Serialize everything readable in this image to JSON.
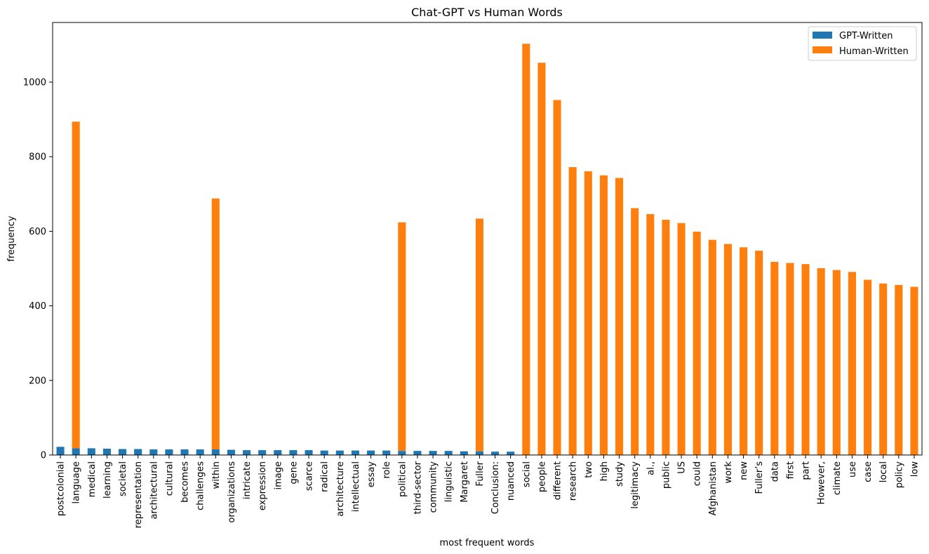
{
  "chart_data": {
    "type": "bar",
    "stacked": true,
    "title": "Chat-GPT vs Human Words",
    "xlabel": "most frequent words",
    "ylabel": "frequency",
    "ylim": [
      0,
      1160
    ],
    "yticks": [
      0,
      200,
      400,
      600,
      800,
      1000
    ],
    "grid": false,
    "legend_position": "top-right",
    "categories": [
      "postcolonial",
      "language",
      "medical",
      "learning",
      "societal",
      "representation",
      "architectural",
      "cultural",
      "becomes",
      "challenges",
      "within",
      "organizations",
      "intricate",
      "expression",
      "image",
      "gene",
      "scarce",
      "radical",
      "architecture",
      "intellectual",
      "essay",
      "role",
      "political",
      "third-sector",
      "community",
      "linguistic",
      "Margaret",
      "Fuller",
      "Conclusion:",
      "nuanced",
      "social",
      "people",
      "different",
      "research",
      "two",
      "high",
      "study",
      "legitimacy",
      "al.,",
      "public",
      "US",
      "could",
      "Afghanistan",
      "work",
      "new",
      "Fuller’s",
      "data",
      "first",
      "part",
      "However,",
      "climate",
      "use",
      "case",
      "local",
      "policy",
      "low"
    ],
    "series": [
      {
        "name": "GPT-Written",
        "color": "#1f77b4",
        "values": [
          22,
          18,
          18,
          17,
          16,
          16,
          15,
          15,
          15,
          15,
          15,
          14,
          13,
          13,
          13,
          13,
          13,
          12,
          12,
          12,
          12,
          12,
          11,
          11,
          11,
          11,
          10,
          10,
          9,
          9,
          0,
          0,
          0,
          0,
          0,
          0,
          0,
          0,
          0,
          0,
          0,
          0,
          0,
          0,
          0,
          0,
          0,
          0,
          0,
          0,
          0,
          0,
          0,
          0,
          0,
          0
        ]
      },
      {
        "name": "Human-Written",
        "color": "#ff7f0e",
        "values": [
          0,
          876,
          0,
          0,
          0,
          0,
          0,
          0,
          0,
          0,
          673,
          0,
          0,
          0,
          0,
          0,
          0,
          0,
          0,
          0,
          0,
          0,
          613,
          0,
          0,
          0,
          0,
          624,
          0,
          0,
          1103,
          1052,
          952,
          772,
          761,
          750,
          743,
          662,
          646,
          631,
          622,
          599,
          577,
          566,
          557,
          548,
          518,
          515,
          512,
          501,
          496,
          491,
          470,
          460,
          456,
          451
        ]
      }
    ]
  }
}
